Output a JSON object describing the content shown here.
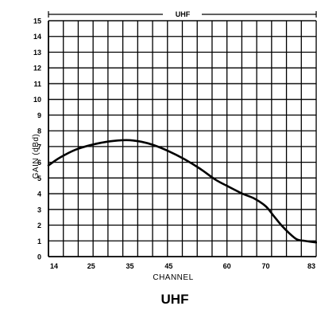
{
  "chart_data": {
    "type": "line",
    "title": "UHF",
    "band_label": "UHF",
    "xlabel": "CHANNEL",
    "ylabel": "GAIN (dBd)",
    "xlim": [
      14,
      83
    ],
    "ylim": [
      0,
      15
    ],
    "x_ticks": [
      14,
      25,
      35,
      45,
      60,
      70,
      83
    ],
    "x_tick_labels": [
      "14",
      "25",
      "35",
      "45",
      "60",
      "70",
      "83"
    ],
    "y_ticks": [
      0,
      1,
      2,
      3,
      4,
      5,
      6,
      7,
      8,
      9,
      10,
      11,
      12,
      13,
      14,
      15
    ],
    "y_tick_labels": [
      "0",
      "1",
      "2",
      "3",
      "4",
      "5",
      "6",
      "7",
      "8",
      "9",
      "10",
      "11",
      "12",
      "13",
      "14",
      "15"
    ],
    "grid": true,
    "series": [
      {
        "x": [
          14,
          17,
          21,
          25,
          29,
          33,
          35,
          38,
          41,
          45,
          49,
          53,
          57,
          60,
          64,
          67,
          70,
          72,
          74,
          76,
          78,
          80,
          83
        ],
        "y": [
          5.8,
          6.3,
          6.8,
          7.1,
          7.3,
          7.4,
          7.4,
          7.3,
          7.1,
          6.7,
          6.2,
          5.6,
          4.9,
          4.5,
          4.0,
          3.7,
          3.2,
          2.6,
          2.0,
          1.5,
          1.1,
          1.0,
          0.9
        ]
      }
    ]
  }
}
